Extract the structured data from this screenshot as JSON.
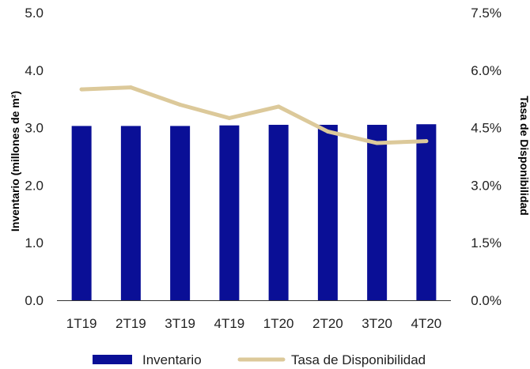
{
  "chart_data": {
    "type": "bar",
    "categories": [
      "1T19",
      "2T19",
      "3T19",
      "4T19",
      "1T20",
      "2T20",
      "3T20",
      "4T20"
    ],
    "series": [
      {
        "name": "Inventario",
        "type": "bar",
        "axis": "left",
        "color": "#0a0f96",
        "values": [
          3.03,
          3.03,
          3.03,
          3.04,
          3.05,
          3.05,
          3.05,
          3.06
        ]
      },
      {
        "name": "Tasa de Disponibilidad",
        "type": "line",
        "axis": "right",
        "color": "#dcc99a",
        "values": [
          5.5,
          5.55,
          5.1,
          4.75,
          5.05,
          4.4,
          4.1,
          4.15
        ]
      }
    ],
    "ylabel": "Inventario (millones de m²)",
    "y2label": "Tasa de Disponibilidad",
    "ylim": [
      0,
      5
    ],
    "y2lim": [
      0,
      7.5
    ],
    "yticks": [
      "0.0",
      "1.0",
      "2.0",
      "3.0",
      "4.0",
      "5.0"
    ],
    "y2ticks": [
      "0.0%",
      "1.5%",
      "3.0%",
      "4.5%",
      "6.0%",
      "7.5%"
    ],
    "grid": false,
    "legend_position": "bottom"
  }
}
